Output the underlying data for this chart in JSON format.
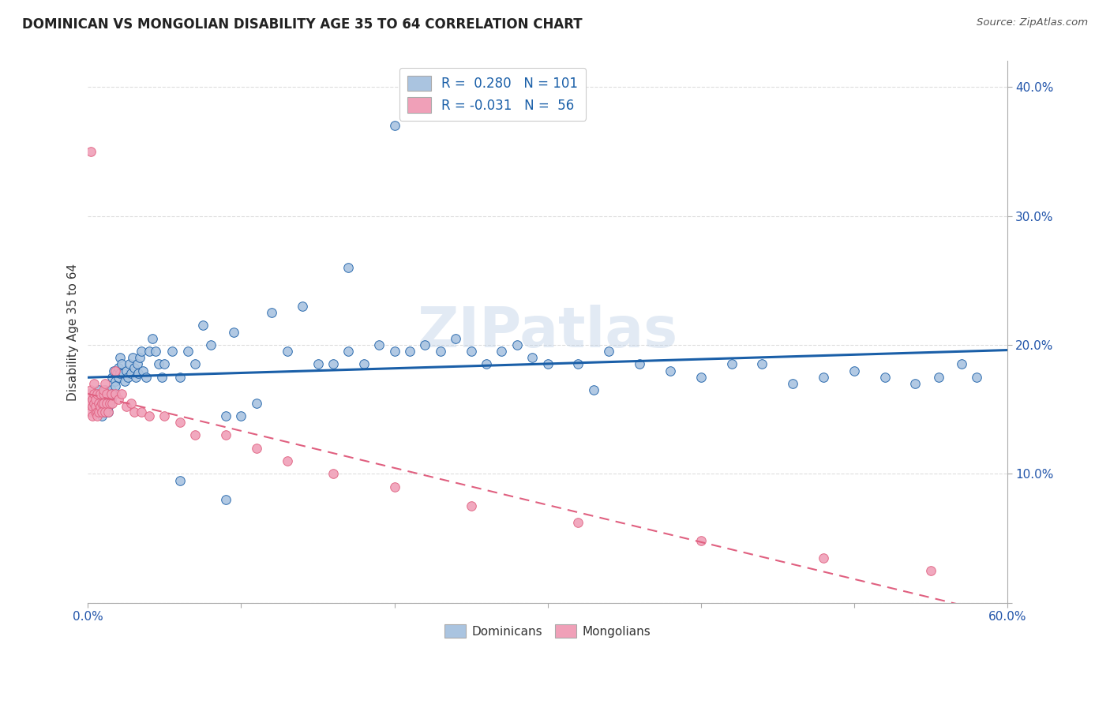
{
  "title": "DOMINICAN VS MONGOLIAN DISABILITY AGE 35 TO 64 CORRELATION CHART",
  "source": "Source: ZipAtlas.com",
  "ylabel": "Disability Age 35 to 64",
  "xlim": [
    0.0,
    0.6
  ],
  "ylim": [
    0.0,
    0.42
  ],
  "dominican_color": "#aac4e0",
  "mongolian_color": "#f0a0b8",
  "line_dominican_color": "#1a5fa8",
  "line_mongolian_color": "#e06080",
  "watermark": "ZIPatlas",
  "dominican_x": [
    0.005,
    0.006,
    0.007,
    0.007,
    0.008,
    0.008,
    0.009,
    0.009,
    0.01,
    0.01,
    0.011,
    0.011,
    0.012,
    0.012,
    0.013,
    0.013,
    0.014,
    0.014,
    0.015,
    0.015,
    0.016,
    0.016,
    0.017,
    0.018,
    0.018,
    0.019,
    0.02,
    0.02,
    0.021,
    0.021,
    0.022,
    0.023,
    0.024,
    0.025,
    0.026,
    0.027,
    0.028,
    0.029,
    0.03,
    0.031,
    0.032,
    0.033,
    0.034,
    0.035,
    0.036,
    0.038,
    0.04,
    0.042,
    0.044,
    0.046,
    0.048,
    0.05,
    0.055,
    0.06,
    0.065,
    0.07,
    0.075,
    0.08,
    0.09,
    0.095,
    0.1,
    0.11,
    0.12,
    0.13,
    0.14,
    0.15,
    0.16,
    0.17,
    0.18,
    0.19,
    0.2,
    0.21,
    0.22,
    0.23,
    0.24,
    0.25,
    0.26,
    0.27,
    0.28,
    0.29,
    0.3,
    0.32,
    0.34,
    0.36,
    0.38,
    0.4,
    0.42,
    0.44,
    0.46,
    0.48,
    0.5,
    0.52,
    0.54,
    0.555,
    0.57,
    0.58,
    0.17,
    0.2,
    0.33,
    0.09,
    0.06
  ],
  "dominican_y": [
    0.155,
    0.148,
    0.165,
    0.15,
    0.152,
    0.148,
    0.162,
    0.145,
    0.158,
    0.152,
    0.165,
    0.148,
    0.155,
    0.162,
    0.148,
    0.152,
    0.16,
    0.155,
    0.165,
    0.158,
    0.175,
    0.162,
    0.18,
    0.172,
    0.168,
    0.178,
    0.182,
    0.175,
    0.178,
    0.19,
    0.185,
    0.178,
    0.172,
    0.18,
    0.175,
    0.185,
    0.178,
    0.19,
    0.182,
    0.175,
    0.185,
    0.178,
    0.19,
    0.195,
    0.18,
    0.175,
    0.195,
    0.205,
    0.195,
    0.185,
    0.175,
    0.185,
    0.195,
    0.175,
    0.195,
    0.185,
    0.215,
    0.2,
    0.145,
    0.21,
    0.145,
    0.155,
    0.225,
    0.195,
    0.23,
    0.185,
    0.185,
    0.195,
    0.185,
    0.2,
    0.195,
    0.195,
    0.2,
    0.195,
    0.205,
    0.195,
    0.185,
    0.195,
    0.2,
    0.19,
    0.185,
    0.185,
    0.195,
    0.185,
    0.18,
    0.175,
    0.185,
    0.185,
    0.17,
    0.175,
    0.18,
    0.175,
    0.17,
    0.175,
    0.185,
    0.175,
    0.26,
    0.37,
    0.165,
    0.08,
    0.095
  ],
  "mongolian_x": [
    0.001,
    0.001,
    0.002,
    0.002,
    0.003,
    0.003,
    0.003,
    0.004,
    0.004,
    0.004,
    0.005,
    0.005,
    0.005,
    0.006,
    0.006,
    0.006,
    0.007,
    0.007,
    0.008,
    0.008,
    0.009,
    0.009,
    0.01,
    0.01,
    0.01,
    0.011,
    0.011,
    0.012,
    0.012,
    0.013,
    0.014,
    0.015,
    0.016,
    0.018,
    0.02,
    0.022,
    0.025,
    0.028,
    0.03,
    0.035,
    0.04,
    0.05,
    0.06,
    0.07,
    0.09,
    0.11,
    0.13,
    0.16,
    0.2,
    0.25,
    0.32,
    0.4,
    0.48,
    0.55,
    0.002,
    0.018
  ],
  "mongolian_y": [
    0.155,
    0.162,
    0.148,
    0.165,
    0.152,
    0.158,
    0.145,
    0.162,
    0.155,
    0.17,
    0.148,
    0.152,
    0.158,
    0.148,
    0.145,
    0.162,
    0.155,
    0.148,
    0.152,
    0.162,
    0.155,
    0.148,
    0.162,
    0.155,
    0.165,
    0.17,
    0.148,
    0.162,
    0.155,
    0.148,
    0.155,
    0.162,
    0.155,
    0.162,
    0.158,
    0.162,
    0.152,
    0.155,
    0.148,
    0.148,
    0.145,
    0.145,
    0.14,
    0.13,
    0.13,
    0.12,
    0.11,
    0.1,
    0.09,
    0.075,
    0.062,
    0.048,
    0.035,
    0.025,
    0.35,
    0.18
  ],
  "background_color": "#ffffff",
  "grid_color": "#dddddd",
  "title_fontsize": 12,
  "axis_label_fontsize": 11,
  "tick_fontsize": 11,
  "legend_fontsize": 12
}
